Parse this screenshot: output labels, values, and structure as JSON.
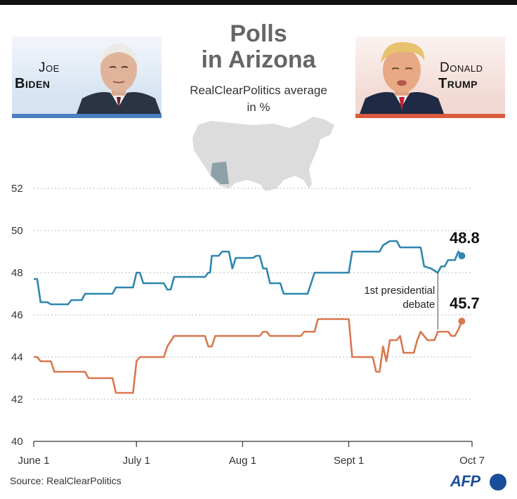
{
  "title_line1": "Polls",
  "title_line2": "in Arizona",
  "subtitle_line1": "RealClearPolitics average",
  "subtitle_line2": "in %",
  "candidates": {
    "biden": {
      "first": "Joe",
      "last": "Biden",
      "color": "#2f86b0"
    },
    "trump": {
      "first": "Donald",
      "last": "Trump",
      "color": "#d9774e"
    }
  },
  "source": "Source: RealClearPolitics",
  "agency": "AFP",
  "chart_data": {
    "type": "line",
    "ylim": [
      40,
      53
    ],
    "yticks": [
      40,
      42,
      44,
      46,
      48,
      50,
      52
    ],
    "xlim": [
      0,
      128
    ],
    "xticks": [
      {
        "day": 0,
        "label": "June 1"
      },
      {
        "day": 30,
        "label": "July 1"
      },
      {
        "day": 61,
        "label": "Aug 1"
      },
      {
        "day": 92,
        "label": "Sept 1"
      },
      {
        "day": 128,
        "label": "Oct 7"
      }
    ],
    "series": [
      {
        "name": "Biden",
        "color": "#2f86b0",
        "end_value": "48.8",
        "points": [
          [
            0,
            47.7
          ],
          [
            1,
            47.7
          ],
          [
            2,
            46.6
          ],
          [
            4,
            46.6
          ],
          [
            5,
            46.5
          ],
          [
            10,
            46.5
          ],
          [
            11,
            46.7
          ],
          [
            14,
            46.7
          ],
          [
            15,
            47.0
          ],
          [
            23,
            47.0
          ],
          [
            24,
            47.3
          ],
          [
            29,
            47.3
          ],
          [
            30,
            48.0
          ],
          [
            31,
            48.0
          ],
          [
            32,
            47.5
          ],
          [
            38,
            47.5
          ],
          [
            39,
            47.2
          ],
          [
            40,
            47.2
          ],
          [
            41,
            47.8
          ],
          [
            50,
            47.8
          ],
          [
            51,
            48.0
          ],
          [
            51.5,
            48.0
          ],
          [
            52,
            48.8
          ],
          [
            54,
            48.8
          ],
          [
            55,
            49.0
          ],
          [
            57,
            49.0
          ],
          [
            58,
            48.2
          ],
          [
            59,
            48.7
          ],
          [
            64,
            48.7
          ],
          [
            65,
            48.8
          ],
          [
            66,
            48.8
          ],
          [
            67,
            48.2
          ],
          [
            68,
            48.2
          ],
          [
            69,
            47.5
          ],
          [
            72,
            47.5
          ],
          [
            73,
            47.0
          ],
          [
            80,
            47.0
          ],
          [
            82,
            48.0
          ],
          [
            92,
            48.0
          ],
          [
            93,
            49.0
          ],
          [
            101,
            49.0
          ],
          [
            102,
            49.3
          ],
          [
            104,
            49.5
          ],
          [
            106,
            49.5
          ],
          [
            107,
            49.2
          ],
          [
            113,
            49.2
          ],
          [
            114,
            48.3
          ],
          [
            116,
            48.2
          ],
          [
            118,
            48.0
          ],
          [
            119,
            48.3
          ],
          [
            120,
            48.3
          ],
          [
            121,
            48.6
          ],
          [
            123,
            48.6
          ],
          [
            124,
            49.0
          ],
          [
            125,
            48.8
          ]
        ]
      },
      {
        "name": "Trump",
        "color": "#d9774e",
        "end_value": "45.7",
        "points": [
          [
            0,
            44.0
          ],
          [
            1,
            44.0
          ],
          [
            2,
            43.8
          ],
          [
            5,
            43.8
          ],
          [
            6,
            43.3
          ],
          [
            15,
            43.3
          ],
          [
            16,
            43.0
          ],
          [
            23,
            43.0
          ],
          [
            24,
            42.3
          ],
          [
            29,
            42.3
          ],
          [
            30,
            43.8
          ],
          [
            31,
            44.0
          ],
          [
            38,
            44.0
          ],
          [
            39,
            44.5
          ],
          [
            41,
            45.0
          ],
          [
            50,
            45.0
          ],
          [
            51,
            44.5
          ],
          [
            52,
            44.5
          ],
          [
            53,
            45.0
          ],
          [
            66,
            45.0
          ],
          [
            67,
            45.2
          ],
          [
            68,
            45.2
          ],
          [
            69,
            45.0
          ],
          [
            78,
            45.0
          ],
          [
            79,
            45.2
          ],
          [
            82,
            45.2
          ],
          [
            83,
            45.8
          ],
          [
            92,
            45.8
          ],
          [
            93,
            44.0
          ],
          [
            99,
            44.0
          ],
          [
            100,
            43.3
          ],
          [
            101,
            43.3
          ],
          [
            102,
            44.5
          ],
          [
            103,
            43.8
          ],
          [
            104,
            44.8
          ],
          [
            106,
            44.8
          ],
          [
            107,
            45.0
          ],
          [
            108,
            44.2
          ],
          [
            111,
            44.2
          ],
          [
            112,
            44.8
          ],
          [
            113,
            45.2
          ],
          [
            115,
            44.8
          ],
          [
            117,
            44.8
          ],
          [
            118,
            45.2
          ],
          [
            121,
            45.2
          ],
          [
            122,
            45.0
          ],
          [
            123,
            45.0
          ],
          [
            124,
            45.3
          ],
          [
            125,
            45.7
          ]
        ]
      }
    ],
    "annotation": {
      "line1": "1st presidential",
      "line2": "debate",
      "day": 118
    }
  }
}
